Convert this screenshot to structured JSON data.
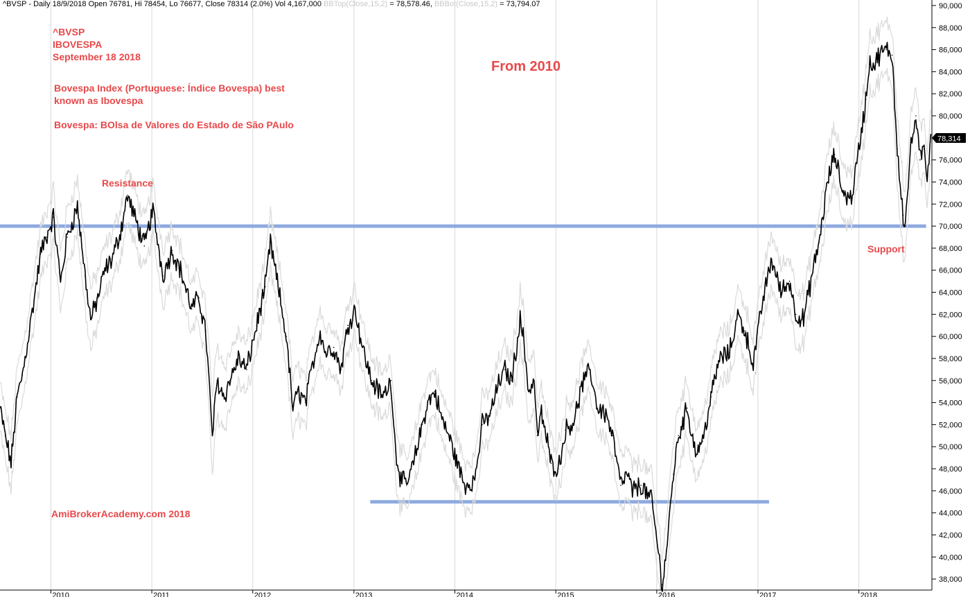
{
  "header": {
    "symbol_line": "^BVSP - Daily 18/9/2018 Open 76781, Hi 78454, Lo 76677, Close 78314 (2.0%) Vol 4,167,000",
    "bbtop_label": "BBTop(Close,15,2)",
    "bbtop_value": "= 78,578.46,",
    "bbbot_label": "BBBot(Close,15,2)",
    "bbbot_value": "= 73,794.07"
  },
  "annotations": {
    "symbol": "^BVSP",
    "name": "IBOVESPA",
    "date": "September 18 2018",
    "desc1": "Bovespa Index (Portuguese: Índice Bovespa) best",
    "desc2": "known as Ibovespa",
    "acronym": "Bovespa: BOlsa de Valores do Estado de São PAulo",
    "period": "From 2010",
    "resistance": "Resistance",
    "support": "Support",
    "footer": "AmiBrokerAcademy.com  2018"
  },
  "price_tag": "78,314",
  "colors": {
    "price": "#000000",
    "band": "#dadada",
    "level_line": "#8eaadf",
    "annotation": "#e8484a",
    "grid": "#d8d8d8",
    "price_tag_bg": "#000000",
    "price_tag_fg": "#ffffff"
  },
  "chart_data": {
    "type": "line",
    "title": "",
    "xlabel": "",
    "ylabel": "",
    "ylim": [
      37000,
      90500
    ],
    "yticks": [
      38000,
      40000,
      42000,
      44000,
      46000,
      48000,
      50000,
      52000,
      54000,
      56000,
      58000,
      60000,
      62000,
      64000,
      66000,
      68000,
      70000,
      72000,
      74000,
      76000,
      78000,
      80000,
      82000,
      84000,
      86000,
      88000,
      90000
    ],
    "ytick_labels": [
      "38,000",
      "40,000",
      "42,000",
      "44,000",
      "46,000",
      "48,000",
      "50,000",
      "52,000",
      "54,000",
      "56,000",
      "58,000",
      "60,000",
      "62,000",
      "64,000",
      "66,000",
      "68,000",
      "70,000",
      "72,000",
      "74,000",
      "76,000",
      "78,000",
      "80,000",
      "82,000",
      "84,000",
      "86,000",
      "88,000",
      "90,000"
    ],
    "xlim": [
      "2009-07-01",
      "2018-09-22"
    ],
    "xticks": [
      "2010-01-01",
      "2011-01-01",
      "2012-01-01",
      "2013-01-01",
      "2014-01-01",
      "2015-01-01",
      "2016-01-01",
      "2017-01-01",
      "2018-01-01"
    ],
    "xtick_labels": [
      "2010",
      "2011",
      "2012",
      "2013",
      "2014",
      "2015",
      "2016",
      "2017",
      "2018"
    ],
    "grid": "vertical lines at year starts",
    "series": [
      {
        "name": "",
        "x": [
          "2009-07-01",
          "2009-07-20",
          "2009-08-10",
          "2009-09-01",
          "2009-09-20",
          "2009-10-15",
          "2009-11-05",
          "2009-11-25",
          "2009-12-15",
          "2010-01-10",
          "2010-02-05",
          "2010-03-01",
          "2010-04-07",
          "2010-05-05",
          "2010-05-25",
          "2010-06-20",
          "2010-07-15",
          "2010-08-10",
          "2010-09-10",
          "2010-10-05",
          "2010-11-04",
          "2010-12-05",
          "2011-01-05",
          "2011-02-10",
          "2011-03-15",
          "2011-04-15",
          "2011-05-25",
          "2011-06-20",
          "2011-07-15",
          "2011-08-08",
          "2011-08-25",
          "2011-09-20",
          "2011-10-10",
          "2011-11-10",
          "2011-12-10",
          "2012-01-15",
          "2012-02-15",
          "2012-03-05",
          "2012-04-05",
          "2012-05-01",
          "2012-05-25",
          "2012-06-15",
          "2012-07-10",
          "2012-08-05",
          "2012-09-01",
          "2012-09-20",
          "2012-10-20",
          "2012-11-15",
          "2012-12-10",
          "2013-01-05",
          "2013-02-01",
          "2013-03-05",
          "2013-04-15",
          "2013-05-15",
          "2013-06-01",
          "2013-06-20",
          "2013-07-10",
          "2013-08-05",
          "2013-09-05",
          "2013-09-25",
          "2013-10-20",
          "2013-11-15",
          "2013-12-10",
          "2014-01-10",
          "2014-02-05",
          "2014-03-14",
          "2014-04-10",
          "2014-05-10",
          "2014-06-05",
          "2014-07-01",
          "2014-07-25",
          "2014-08-25",
          "2014-09-05",
          "2014-09-25",
          "2014-10-15",
          "2014-10-26",
          "2014-11-10",
          "2014-12-05",
          "2014-12-15",
          "2015-01-10",
          "2015-02-05",
          "2015-03-10",
          "2015-04-05",
          "2015-05-05",
          "2015-06-01",
          "2015-07-01",
          "2015-07-25",
          "2015-08-24",
          "2015-09-15",
          "2015-10-05",
          "2015-11-05",
          "2015-12-15",
          "2016-01-21",
          "2016-02-05",
          "2016-03-01",
          "2016-03-20",
          "2016-04-20",
          "2016-05-20",
          "2016-06-15",
          "2016-07-15",
          "2016-08-15",
          "2016-09-20",
          "2016-10-20",
          "2016-11-15",
          "2016-12-15",
          "2017-01-20",
          "2017-02-20",
          "2017-03-25",
          "2017-04-25",
          "2017-05-18",
          "2017-06-15",
          "2017-07-15",
          "2017-08-10",
          "2017-09-10",
          "2017-10-05",
          "2017-11-05",
          "2017-12-05",
          "2018-01-10",
          "2018-01-26",
          "2018-02-10",
          "2018-02-25",
          "2018-03-15",
          "2018-04-10",
          "2018-05-01",
          "2018-05-20",
          "2018-06-10",
          "2018-06-18",
          "2018-07-05",
          "2018-07-26",
          "2018-08-10",
          "2018-08-25",
          "2018-09-05",
          "2018-09-18"
        ],
        "y": [
          53500,
          51000,
          48500,
          54500,
          56500,
          60500,
          64000,
          67500,
          69000,
          70800,
          65000,
          69000,
          71800,
          65500,
          61500,
          63500,
          66000,
          67000,
          69500,
          72800,
          70500,
          68200,
          71500,
          65500,
          67800,
          66000,
          62500,
          63500,
          60500,
          51000,
          56000,
          54500,
          56000,
          58000,
          57000,
          61000,
          64500,
          68500,
          64000,
          60000,
          53500,
          55000,
          54000,
          57500,
          60500,
          58500,
          59000,
          57000,
          61000,
          62500,
          59000,
          56000,
          54500,
          56000,
          49500,
          47000,
          46500,
          48500,
          52000,
          54000,
          55000,
          52500,
          51000,
          48500,
          46500,
          47000,
          52000,
          53000,
          55500,
          57000,
          56000,
          61500,
          60000,
          55000,
          56000,
          51000,
          53000,
          50000,
          48500,
          48000,
          51500,
          52500,
          55500,
          57000,
          53500,
          53000,
          51000,
          46500,
          47500,
          46000,
          46500,
          45000,
          37500,
          40500,
          47500,
          51000,
          53500,
          49500,
          50500,
          54500,
          58000,
          58500,
          62000,
          60500,
          57500,
          63500,
          67000,
          64000,
          65000,
          62000,
          61500,
          65500,
          68500,
          74000,
          76500,
          73000,
          72500,
          78500,
          81500,
          85000,
          84500,
          85500,
          86000,
          85500,
          77000,
          71000,
          70000,
          76500,
          80000,
          76000,
          77000,
          74500,
          78314
        ]
      }
    ],
    "band_width": [
      2200,
      2200,
      2400,
      2600,
      2400,
      2200,
      2400,
      2300,
      2200,
      2500,
      2800,
      2500,
      2400,
      3000,
      2800,
      2400,
      2200,
      2200,
      2200,
      2400,
      2400,
      2300,
      2300,
      2500,
      2300,
      2100,
      2200,
      2200,
      2400,
      3500,
      3200,
      2800,
      2500,
      2300,
      2200,
      2200,
      2400,
      2500,
      2400,
      2600,
      2600,
      2300,
      2200,
      2300,
      2300,
      2100,
      2000,
      2000,
      2100,
      2100,
      2200,
      2100,
      2000,
      2200,
      2800,
      2600,
      2200,
      2200,
      2300,
      2100,
      2000,
      2000,
      2100,
      2200,
      2100,
      2100,
      2400,
      2200,
      2100,
      2100,
      2100,
      2600,
      2700,
      2800,
      2600,
      2500,
      2300,
      2200,
      2200,
      2100,
      2200,
      2100,
      2200,
      2100,
      2200,
      2100,
      2200,
      2500,
      2300,
      2200,
      2100,
      2300,
      2800,
      2900,
      3000,
      2700,
      2400,
      2300,
      2200,
      2300,
      2300,
      2100,
      2300,
      2400,
      2300,
      2300,
      2400,
      2300,
      2200,
      2600,
      2300,
      2200,
      2300,
      2600,
      2400,
      2500,
      2300,
      2500,
      2500,
      2500,
      2400,
      2300,
      2300,
      2400,
      3200,
      3400,
      2900,
      2800,
      2900,
      2600,
      2400,
      2400,
      2300
    ],
    "levels": [
      {
        "value": 70000,
        "from": "2009-07-01",
        "to": "2018-09-01"
      },
      {
        "value": 45000,
        "from": "2013-03-01",
        "to": "2017-02-10"
      }
    ]
  }
}
